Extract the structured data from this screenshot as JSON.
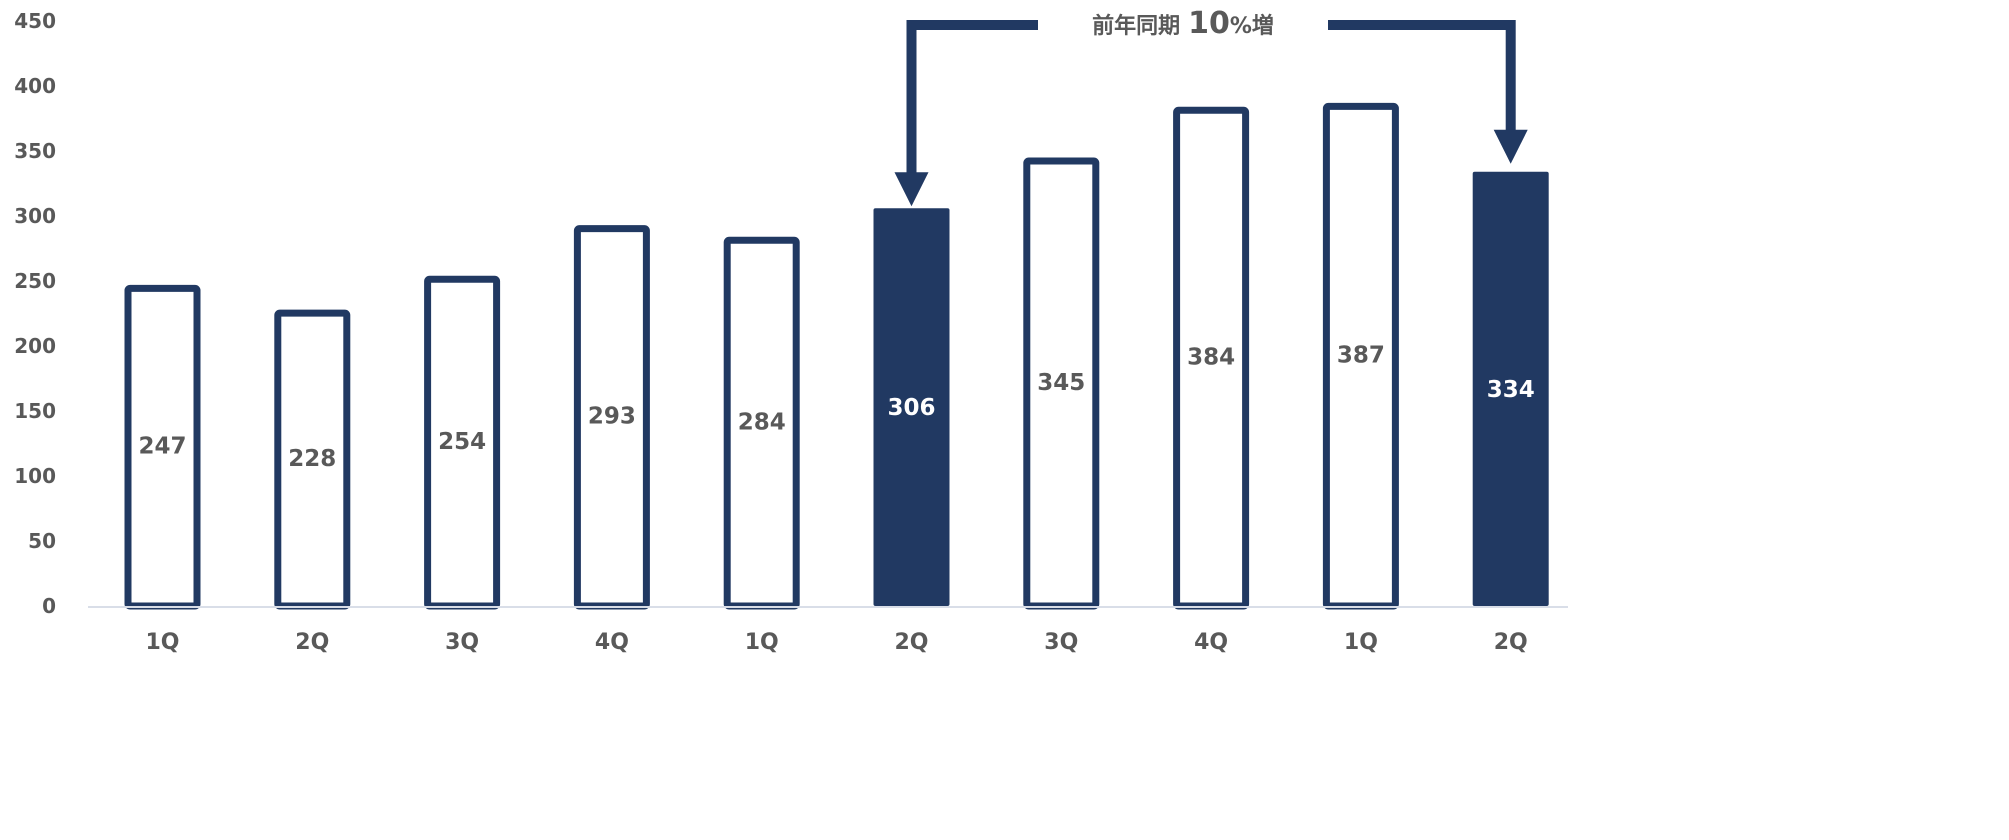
{
  "colors": {
    "bar": "#213962",
    "bar_fill_highlight": "#213962",
    "bar_fill_normal": "#ffffff",
    "label_normal": "#595959",
    "label_highlight": "#ffffff",
    "axis_text": "#595959",
    "baseline": "#d9dee8"
  },
  "chart_data": {
    "type": "bar",
    "categories": [
      "1Q",
      "2Q",
      "3Q",
      "4Q",
      "1Q",
      "2Q",
      "3Q",
      "4Q",
      "1Q",
      "2Q"
    ],
    "values": [
      247,
      228,
      254,
      293,
      284,
      306,
      345,
      384,
      387,
      334
    ],
    "highlighted": [
      false,
      false,
      false,
      false,
      false,
      true,
      false,
      false,
      false,
      true
    ],
    "data_labels": [
      "247",
      "228",
      "254",
      "293",
      "284",
      "306",
      "345",
      "384",
      "387",
      "334"
    ],
    "ylim": [
      0,
      450
    ],
    "yticks": [
      0,
      50,
      100,
      150,
      200,
      250,
      300,
      350,
      400,
      450
    ],
    "ytick_labels": [
      "0",
      "50",
      "100",
      "150",
      "200",
      "250",
      "300",
      "350",
      "400",
      "450"
    ],
    "grid": false,
    "annotation": {
      "text_prefix": "前年同期",
      "text_value": "10",
      "text_suffix": "%増",
      "from_category_index": 5,
      "to_category_index": 9
    }
  }
}
